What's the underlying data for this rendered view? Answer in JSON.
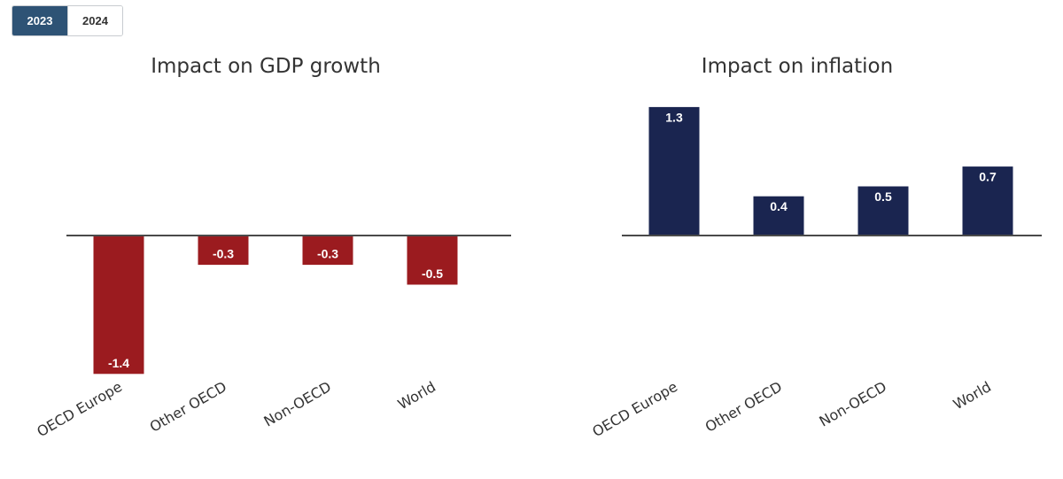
{
  "tabs": [
    {
      "label": "2023",
      "active": true
    },
    {
      "label": "2024",
      "active": false
    }
  ],
  "chart_data": [
    {
      "type": "bar",
      "title": "Impact on GDP growth",
      "categories": [
        "OECD Europe",
        "Other OECD",
        "Non-OECD",
        "World"
      ],
      "values": [
        -1.4,
        -0.3,
        -0.3,
        -0.5
      ],
      "data_labels": [
        "-1.4",
        "-0.3",
        "-0.3",
        "-0.5"
      ],
      "bar_color": "#9b1b1f",
      "xlabel": "",
      "ylabel": "",
      "grid": false
    },
    {
      "type": "bar",
      "title": "Impact on inflation",
      "categories": [
        "OECD Europe",
        "Other OECD",
        "Non-OECD",
        "World"
      ],
      "values": [
        1.3,
        0.4,
        0.5,
        0.7
      ],
      "data_labels": [
        "1.3",
        "0.4",
        "0.5",
        "0.7"
      ],
      "bar_color": "#1a2550",
      "xlabel": "",
      "ylabel": "",
      "grid": false
    }
  ]
}
